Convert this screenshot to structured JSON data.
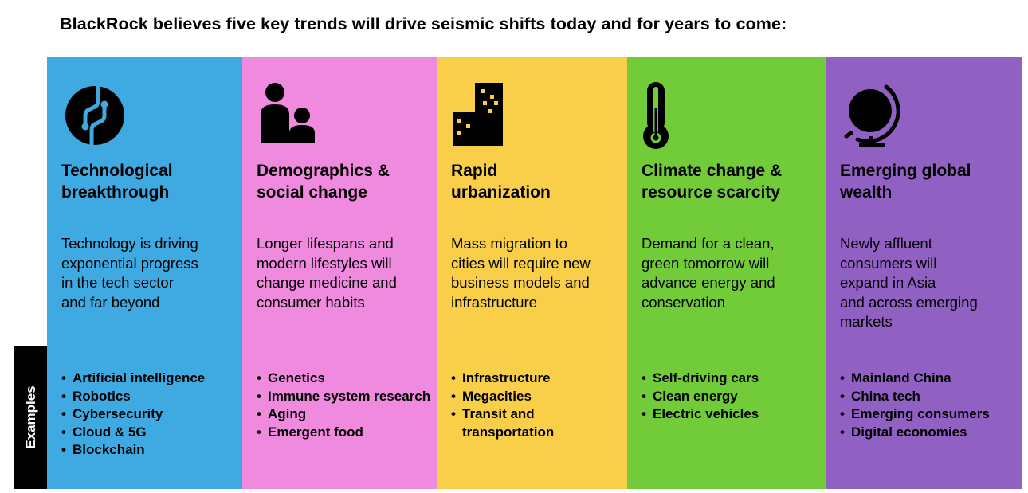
{
  "headline": "BlackRock believes five key trends will drive seismic shifts today and for years to come:",
  "examples_label": "Examples",
  "columns": [
    {
      "color": "#3fa9e1",
      "icon": "circuit-globe-icon",
      "title": "Technological\nbreakthrough",
      "description": "Technology is driving\nexponential progress\nin the tech sector\nand far beyond",
      "examples": [
        "Artificial intelligence",
        "Robotics",
        "Cybersecurity",
        "Cloud & 5G",
        "Blockchain"
      ]
    },
    {
      "color": "#f08adf",
      "icon": "people-icon",
      "title": "Demographics &\nsocial change",
      "description": "Longer lifespans and\nmodern lifestyles will\nchange medicine and\nconsumer habits",
      "examples": [
        "Genetics",
        "Immune system research",
        "Aging",
        "Emergent food"
      ]
    },
    {
      "color": "#f9cf4a",
      "icon": "buildings-icon",
      "title": "Rapid\nurbanization",
      "description": "Mass migration to\ncities will require new\nbusiness models and\ninfrastructure",
      "examples": [
        "Infrastructure",
        "Megacities",
        "Transit and transportation"
      ]
    },
    {
      "color": "#72cc3a",
      "icon": "thermometer-icon",
      "title": "Climate change &\nresource scarcity",
      "description": "Demand for a clean,\ngreen tomorrow will\nadvance energy and\nconservation",
      "examples": [
        "Self-driving cars",
        "Clean energy",
        "Electric vehicles"
      ]
    },
    {
      "color": "#9060c2",
      "icon": "globe-icon",
      "title": "Emerging global\nwealth",
      "description": "Newly affluent\nconsumers will\nexpand in Asia\nand across emerging\nmarkets",
      "examples": [
        "Mainland China",
        "China tech",
        "Emerging consumers",
        "Digital economies"
      ]
    }
  ]
}
